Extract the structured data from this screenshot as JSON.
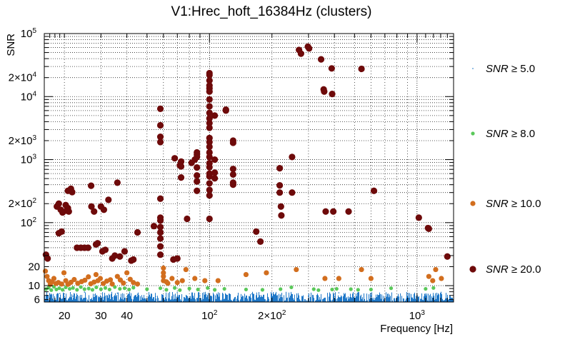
{
  "chart_data": {
    "type": "scatter",
    "title": "V1:Hrec_hoft_16384Hz (clusters)",
    "xlabel": "Frequency [Hz]",
    "ylabel": "SNR",
    "xscale": "log",
    "yscale": "log",
    "xlim": [
      16,
      1500
    ],
    "ylim": [
      5.5,
      100000
    ],
    "grid": true,
    "legend_placement": "right",
    "x_ticks": [
      {
        "value": 20,
        "label": "20"
      },
      {
        "value": 30,
        "label": "30"
      },
      {
        "value": 40,
        "label": "40"
      },
      {
        "value": 100,
        "label": "10",
        "exp": "2"
      },
      {
        "value": 200,
        "label": "2×10",
        "exp": "2"
      },
      {
        "value": 1000,
        "label": "10",
        "exp": "3"
      }
    ],
    "y_ticks": [
      {
        "value": 6,
        "label": "6"
      },
      {
        "value": 10,
        "label": "10"
      },
      {
        "value": 20,
        "label": "20"
      },
      {
        "value": 100,
        "label": "10",
        "exp": "2"
      },
      {
        "value": 200,
        "label": "2×10",
        "exp": "2"
      },
      {
        "value": 1000,
        "label": "10",
        "exp": "3"
      },
      {
        "value": 2000,
        "label": "2×10",
        "exp": "3"
      },
      {
        "value": 10000,
        "label": "10",
        "exp": "4"
      },
      {
        "value": 20000,
        "label": "2×10",
        "exp": "4"
      },
      {
        "value": 100000,
        "label": "10",
        "exp": "5"
      }
    ],
    "series": [
      {
        "name": "SNR ≥ 5.0",
        "label_prefix": "SNR",
        "label_op": "≥",
        "label_value": "5.0",
        "color": "#1f78c8",
        "marker": "dot",
        "x_range": [
          16,
          1500
        ],
        "y_range": [
          5.5,
          8.0
        ],
        "points": [
          [
            17,
            7.2
          ],
          [
            19,
            7.5
          ],
          [
            22,
            6.8
          ],
          [
            25,
            7.9
          ],
          [
            28,
            7.1
          ],
          [
            32,
            6.9
          ],
          [
            36,
            7.6
          ],
          [
            45,
            7.3
          ],
          [
            55,
            6.7
          ],
          [
            70,
            7.8
          ],
          [
            90,
            7.0
          ],
          [
            120,
            6.8
          ],
          [
            160,
            7.4
          ],
          [
            220,
            7.1
          ],
          [
            300,
            6.9
          ],
          [
            420,
            7.7
          ],
          [
            600,
            7.0
          ],
          [
            900,
            6.8
          ],
          [
            1300,
            7.3
          ]
        ]
      },
      {
        "name": "SNR ≥ 8.0",
        "label_prefix": "SNR",
        "label_op": "≥",
        "label_value": "8.0",
        "color": "#5ac85a",
        "marker": "circle",
        "points": [
          [
            16.3,
            8.8
          ],
          [
            16.8,
            9.3
          ],
          [
            17.3,
            8.5
          ],
          [
            17.8,
            9.6
          ],
          [
            18.3,
            8.7
          ],
          [
            18.9,
            9.1
          ],
          [
            19.6,
            8.6
          ],
          [
            20.3,
            9.4
          ],
          [
            21.2,
            8.9
          ],
          [
            22,
            9.2
          ],
          [
            23,
            8.6
          ],
          [
            24,
            9.5
          ],
          [
            25,
            8.8
          ],
          [
            26.2,
            9.0
          ],
          [
            27.3,
            8.6
          ],
          [
            28.5,
            9.4
          ],
          [
            30,
            8.8
          ],
          [
            31.5,
            9.2
          ],
          [
            33,
            8.7
          ],
          [
            35,
            9.5
          ],
          [
            37,
            8.9
          ],
          [
            39,
            9.1
          ],
          [
            41,
            8.7
          ],
          [
            43,
            9.3
          ],
          [
            50,
            8.8
          ],
          [
            58,
            9.1
          ],
          [
            62,
            8.6
          ],
          [
            68,
            9.2
          ],
          [
            72,
            8.5
          ],
          [
            80,
            9.0
          ],
          [
            88,
            8.7
          ],
          [
            98,
            9.2
          ],
          [
            106,
            8.6
          ],
          [
            118,
            8.9
          ],
          [
            150,
            8.7
          ],
          [
            180,
            8.6
          ],
          [
            220,
            8.8
          ],
          [
            248,
            9.4
          ],
          [
            318,
            8.8
          ],
          [
            335,
            8.5
          ],
          [
            390,
            8.7
          ],
          [
            410,
            8.9
          ],
          [
            480,
            8.8
          ],
          [
            520,
            8.6
          ],
          [
            600,
            8.7
          ],
          [
            750,
            9.1
          ],
          [
            1100,
            8.9
          ],
          [
            1200,
            9.2
          ]
        ]
      },
      {
        "name": "SNR ≥ 10.0",
        "label_prefix": "SNR",
        "label_op": "≥",
        "label_value": "10.0",
        "color": "#d26e1e",
        "marker": "circle",
        "points": [
          [
            16.2,
            17
          ],
          [
            16.5,
            14
          ],
          [
            16.8,
            12
          ],
          [
            17.1,
            10.5
          ],
          [
            17.4,
            11.5
          ],
          [
            17.8,
            13
          ],
          [
            18.2,
            10.8
          ],
          [
            18.7,
            11.2
          ],
          [
            19.4,
            10.6
          ],
          [
            19.9,
            16
          ],
          [
            20.3,
            12
          ],
          [
            20.8,
            10.5
          ],
          [
            21.5,
            11.3
          ],
          [
            22.3,
            12.5
          ],
          [
            23.2,
            10.9
          ],
          [
            24.2,
            11.6
          ],
          [
            25.1,
            12.2
          ],
          [
            26.1,
            13.8
          ],
          [
            26.8,
            10.7
          ],
          [
            27.8,
            11.4
          ],
          [
            28.4,
            15
          ],
          [
            29,
            12
          ],
          [
            29.8,
            13
          ],
          [
            30.8,
            10.8
          ],
          [
            32,
            11.8
          ],
          [
            33.3,
            12.4
          ],
          [
            34,
            10.6
          ],
          [
            36,
            14
          ],
          [
            37.2,
            12.3
          ],
          [
            38.5,
            11
          ],
          [
            40,
            16
          ],
          [
            41.5,
            12.6
          ],
          [
            43,
            11.2
          ],
          [
            45,
            10.6
          ],
          [
            60,
            19
          ],
          [
            60,
            16
          ],
          [
            60,
            14
          ],
          [
            60,
            12
          ],
          [
            62,
            11.5
          ],
          [
            63,
            10.9
          ],
          [
            66,
            13
          ],
          [
            70,
            11.2
          ],
          [
            74,
            12
          ],
          [
            77,
            18
          ],
          [
            85,
            13
          ],
          [
            95,
            12
          ],
          [
            110,
            12
          ],
          [
            150,
            15
          ],
          [
            188,
            16
          ],
          [
            262,
            18
          ],
          [
            360,
            13
          ],
          [
            420,
            13
          ],
          [
            540,
            18
          ],
          [
            600,
            13
          ],
          [
            1140,
            14
          ],
          [
            1190,
            12
          ],
          [
            1230,
            18
          ],
          [
            1310,
            13
          ]
        ]
      },
      {
        "name": "SNR ≥ 20.0",
        "label_prefix": "SNR",
        "label_op": "≥",
        "label_value": "20.0",
        "color": "#6e0a0a",
        "marker": "circle",
        "points": [
          [
            16.3,
            31
          ],
          [
            16.6,
            27
          ],
          [
            19.2,
            160
          ],
          [
            19.6,
            145
          ],
          [
            18.4,
            180
          ],
          [
            18.8,
            200
          ],
          [
            20.3,
            190
          ],
          [
            20.8,
            170
          ],
          [
            20.8,
            320
          ],
          [
            21.5,
            345
          ],
          [
            21.8,
            305
          ],
          [
            20.5,
            155
          ],
          [
            21,
            150
          ],
          [
            23,
            40
          ],
          [
            24,
            40
          ],
          [
            25,
            40
          ],
          [
            26,
            40
          ],
          [
            26.9,
            385
          ],
          [
            27,
            180
          ],
          [
            27.8,
            150
          ],
          [
            28.4,
            45
          ],
          [
            28.9,
            47
          ],
          [
            30.5,
            35
          ],
          [
            31.5,
            37
          ],
          [
            32.6,
            230
          ],
          [
            34,
            27
          ],
          [
            35,
            30
          ],
          [
            30,
            180
          ],
          [
            31,
            160
          ],
          [
            18.8,
            68
          ],
          [
            19.4,
            72
          ],
          [
            36,
            430
          ],
          [
            37,
            29
          ],
          [
            39,
            35
          ],
          [
            42,
            25
          ],
          [
            43,
            26
          ],
          [
            45,
            70
          ],
          [
            54,
            88
          ],
          [
            58,
            6400
          ],
          [
            58,
            3500
          ],
          [
            58,
            2300
          ],
          [
            58,
            1900
          ],
          [
            58,
            240
          ],
          [
            58,
            120
          ],
          [
            58,
            108
          ],
          [
            58,
            85
          ],
          [
            58,
            70
          ],
          [
            58,
            56
          ],
          [
            58,
            42
          ],
          [
            58,
            31
          ],
          [
            67,
            26
          ],
          [
            70,
            27
          ],
          [
            68,
            1050
          ],
          [
            73,
            930
          ],
          [
            72,
            810
          ],
          [
            73,
            780
          ],
          [
            73,
            520
          ],
          [
            78,
            115
          ],
          [
            82,
            890
          ],
          [
            85,
            1000
          ],
          [
            87,
            1300
          ],
          [
            87,
            1200
          ],
          [
            87,
            1100
          ],
          [
            87,
            750
          ],
          [
            87,
            560
          ],
          [
            87,
            450
          ],
          [
            87,
            320
          ],
          [
            100,
            23500
          ],
          [
            100,
            22000
          ],
          [
            100,
            18000
          ],
          [
            100,
            15000
          ],
          [
            100,
            13500
          ],
          [
            100,
            12000
          ],
          [
            100,
            9000
          ],
          [
            100,
            7000
          ],
          [
            100,
            5500
          ],
          [
            100,
            4500
          ],
          [
            100,
            3800
          ],
          [
            100,
            3200
          ],
          [
            100,
            2200
          ],
          [
            100,
            1900
          ],
          [
            100,
            1600
          ],
          [
            100,
            1300
          ],
          [
            100,
            1100
          ],
          [
            100,
            880
          ],
          [
            100,
            760
          ],
          [
            100,
            600
          ],
          [
            100,
            540
          ],
          [
            100,
            420
          ],
          [
            100,
            330
          ],
          [
            100,
            270
          ],
          [
            100,
            115
          ],
          [
            106,
            5000
          ],
          [
            106,
            1000
          ],
          [
            106,
            620
          ],
          [
            106,
            505
          ],
          [
            120,
            6000
          ],
          [
            120,
            6200
          ],
          [
            130,
            2000
          ],
          [
            130,
            1850
          ],
          [
            130,
            710
          ],
          [
            130,
            580
          ],
          [
            130,
            430
          ],
          [
            130,
            400
          ],
          [
            168,
            72
          ],
          [
            176,
            50
          ],
          [
            218,
            730
          ],
          [
            218,
            390
          ],
          [
            218,
            300
          ],
          [
            221,
            180
          ],
          [
            222,
            130
          ],
          [
            250,
            300
          ],
          [
            250,
            1100
          ],
          [
            270,
            55000
          ],
          [
            276,
            48000
          ],
          [
            298,
            62000
          ],
          [
            302,
            58000
          ],
          [
            345,
            39000
          ],
          [
            355,
            13000
          ],
          [
            357,
            12000
          ],
          [
            363,
            150
          ],
          [
            388,
            28000
          ],
          [
            390,
            11000
          ],
          [
            395,
            150
          ],
          [
            468,
            150
          ],
          [
            540,
            27500
          ],
          [
            620,
            320
          ],
          [
            1020,
            120
          ],
          [
            1130,
            82
          ],
          [
            1140,
            80
          ],
          [
            1400,
            29
          ]
        ]
      }
    ]
  }
}
